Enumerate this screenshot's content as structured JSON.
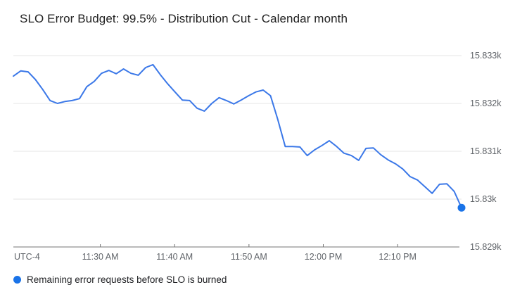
{
  "title": "SLO Error Budget: 99.5% - Distribution Cut - Calendar month",
  "legend": {
    "label": "Remaining error requests before SLO is burned"
  },
  "colors": {
    "line": "#3b78e8",
    "end_dot": "#1a73e8",
    "grid": "#e6e6e6",
    "axis": "#757575",
    "axis_label": "#5f6368",
    "title": "#212121"
  },
  "chart_data": {
    "type": "line",
    "title": "SLO Error Budget: 99.5% - Distribution Cut - Calendar month",
    "grid": true,
    "legend_position": "bottom-left",
    "end_marker": "dot",
    "x_axis": {
      "timezone_label": "UTC-4",
      "tick_labels": [
        "11:30 AM",
        "11:40 AM",
        "11:50 AM",
        "12:00 PM",
        "12:10 PM"
      ],
      "tick_positions_min": [
        11.7,
        21.7,
        31.7,
        41.7,
        51.7
      ],
      "time_domain_minutes": [
        0,
        60.3
      ],
      "start_time": "11:18 AM",
      "end_time": "12:18 PM",
      "sample_interval_min": 1
    },
    "y_axis": {
      "tick_labels": [
        "15.833k",
        "15.832k",
        "15.831k",
        "15.83k",
        "15.829k"
      ],
      "tick_values": [
        15833,
        15832,
        15831,
        15830,
        15829
      ],
      "range": [
        15829,
        15833.1
      ]
    },
    "series": [
      {
        "name": "Remaining error requests before SLO is burned",
        "values": [
          15832.57,
          15832.68,
          15832.66,
          15832.5,
          15832.29,
          15832.06,
          15832.0,
          15832.04,
          15832.06,
          15832.1,
          15832.35,
          15832.46,
          15832.63,
          15832.69,
          15832.62,
          15832.72,
          15832.63,
          15832.59,
          15832.75,
          15832.81,
          15832.6,
          15832.41,
          15832.24,
          15832.07,
          15832.06,
          15831.9,
          15831.84,
          15832.0,
          15832.12,
          15832.06,
          15831.99,
          15832.07,
          15832.16,
          15832.24,
          15832.28,
          15832.16,
          15831.66,
          15831.1,
          15831.1,
          15831.09,
          15830.91,
          15831.03,
          15831.12,
          15831.22,
          15831.1,
          15830.96,
          15830.91,
          15830.81,
          15831.06,
          15831.07,
          15830.93,
          15830.82,
          15830.74,
          15830.63,
          15830.47,
          15830.4,
          15830.26,
          15830.12,
          15830.31,
          15830.32,
          15830.16,
          15829.82
        ]
      }
    ]
  }
}
